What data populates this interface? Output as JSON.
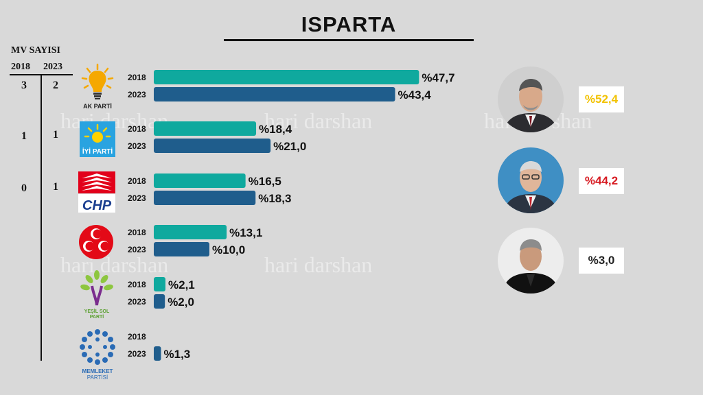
{
  "title": "ISPARTA",
  "mv": {
    "header": "MV SAYISI",
    "year_a": "2018",
    "year_b": "2023",
    "rows": [
      {
        "a": "3",
        "b": "2"
      },
      {
        "a": "1",
        "b": "1"
      },
      {
        "a": "0",
        "b": "1"
      }
    ]
  },
  "watermark": "hari darshan",
  "logos": {
    "akp": "AK PARTİ",
    "iyi": "İYİ PARTİ",
    "chp": "CHP",
    "ysp_1": "YEŞİL SOL",
    "ysp_2": "PARTİ",
    "mem_1": "MEMLEKET",
    "mem_2": "PARTİSİ"
  },
  "candidates": [
    {
      "value": "%52,4",
      "color": "#f2c200",
      "icon": "candidate-1-portrait"
    },
    {
      "value": "%44,2",
      "color": "#d71920",
      "icon": "candidate-2-portrait"
    },
    {
      "value": "%3,0",
      "color": "#222222",
      "icon": "candidate-3-portrait"
    }
  ],
  "chart_data": {
    "type": "bar",
    "orientation": "horizontal",
    "categories": [
      "AK PARTİ",
      "İYİ PARTİ",
      "CHP",
      "MHP",
      "YEŞİL SOL PARTİ",
      "MEMLEKET PARTİSİ"
    ],
    "series": [
      {
        "name": "2018",
        "color": "#0fa99e",
        "values": [
          47.7,
          18.4,
          16.5,
          13.1,
          2.1,
          null
        ],
        "labels": [
          "%47,7",
          "%18,4",
          "%16,5",
          "%13,1",
          "%2,1",
          ""
        ]
      },
      {
        "name": "2023",
        "color": "#1f5d8c",
        "values": [
          43.4,
          21.0,
          18.3,
          10.0,
          2.0,
          1.3
        ],
        "labels": [
          "%43,4",
          "%21,0",
          "%18,3",
          "%10,0",
          "%2,0",
          "%1,3"
        ]
      }
    ],
    "xlim": [
      0,
      50
    ]
  }
}
